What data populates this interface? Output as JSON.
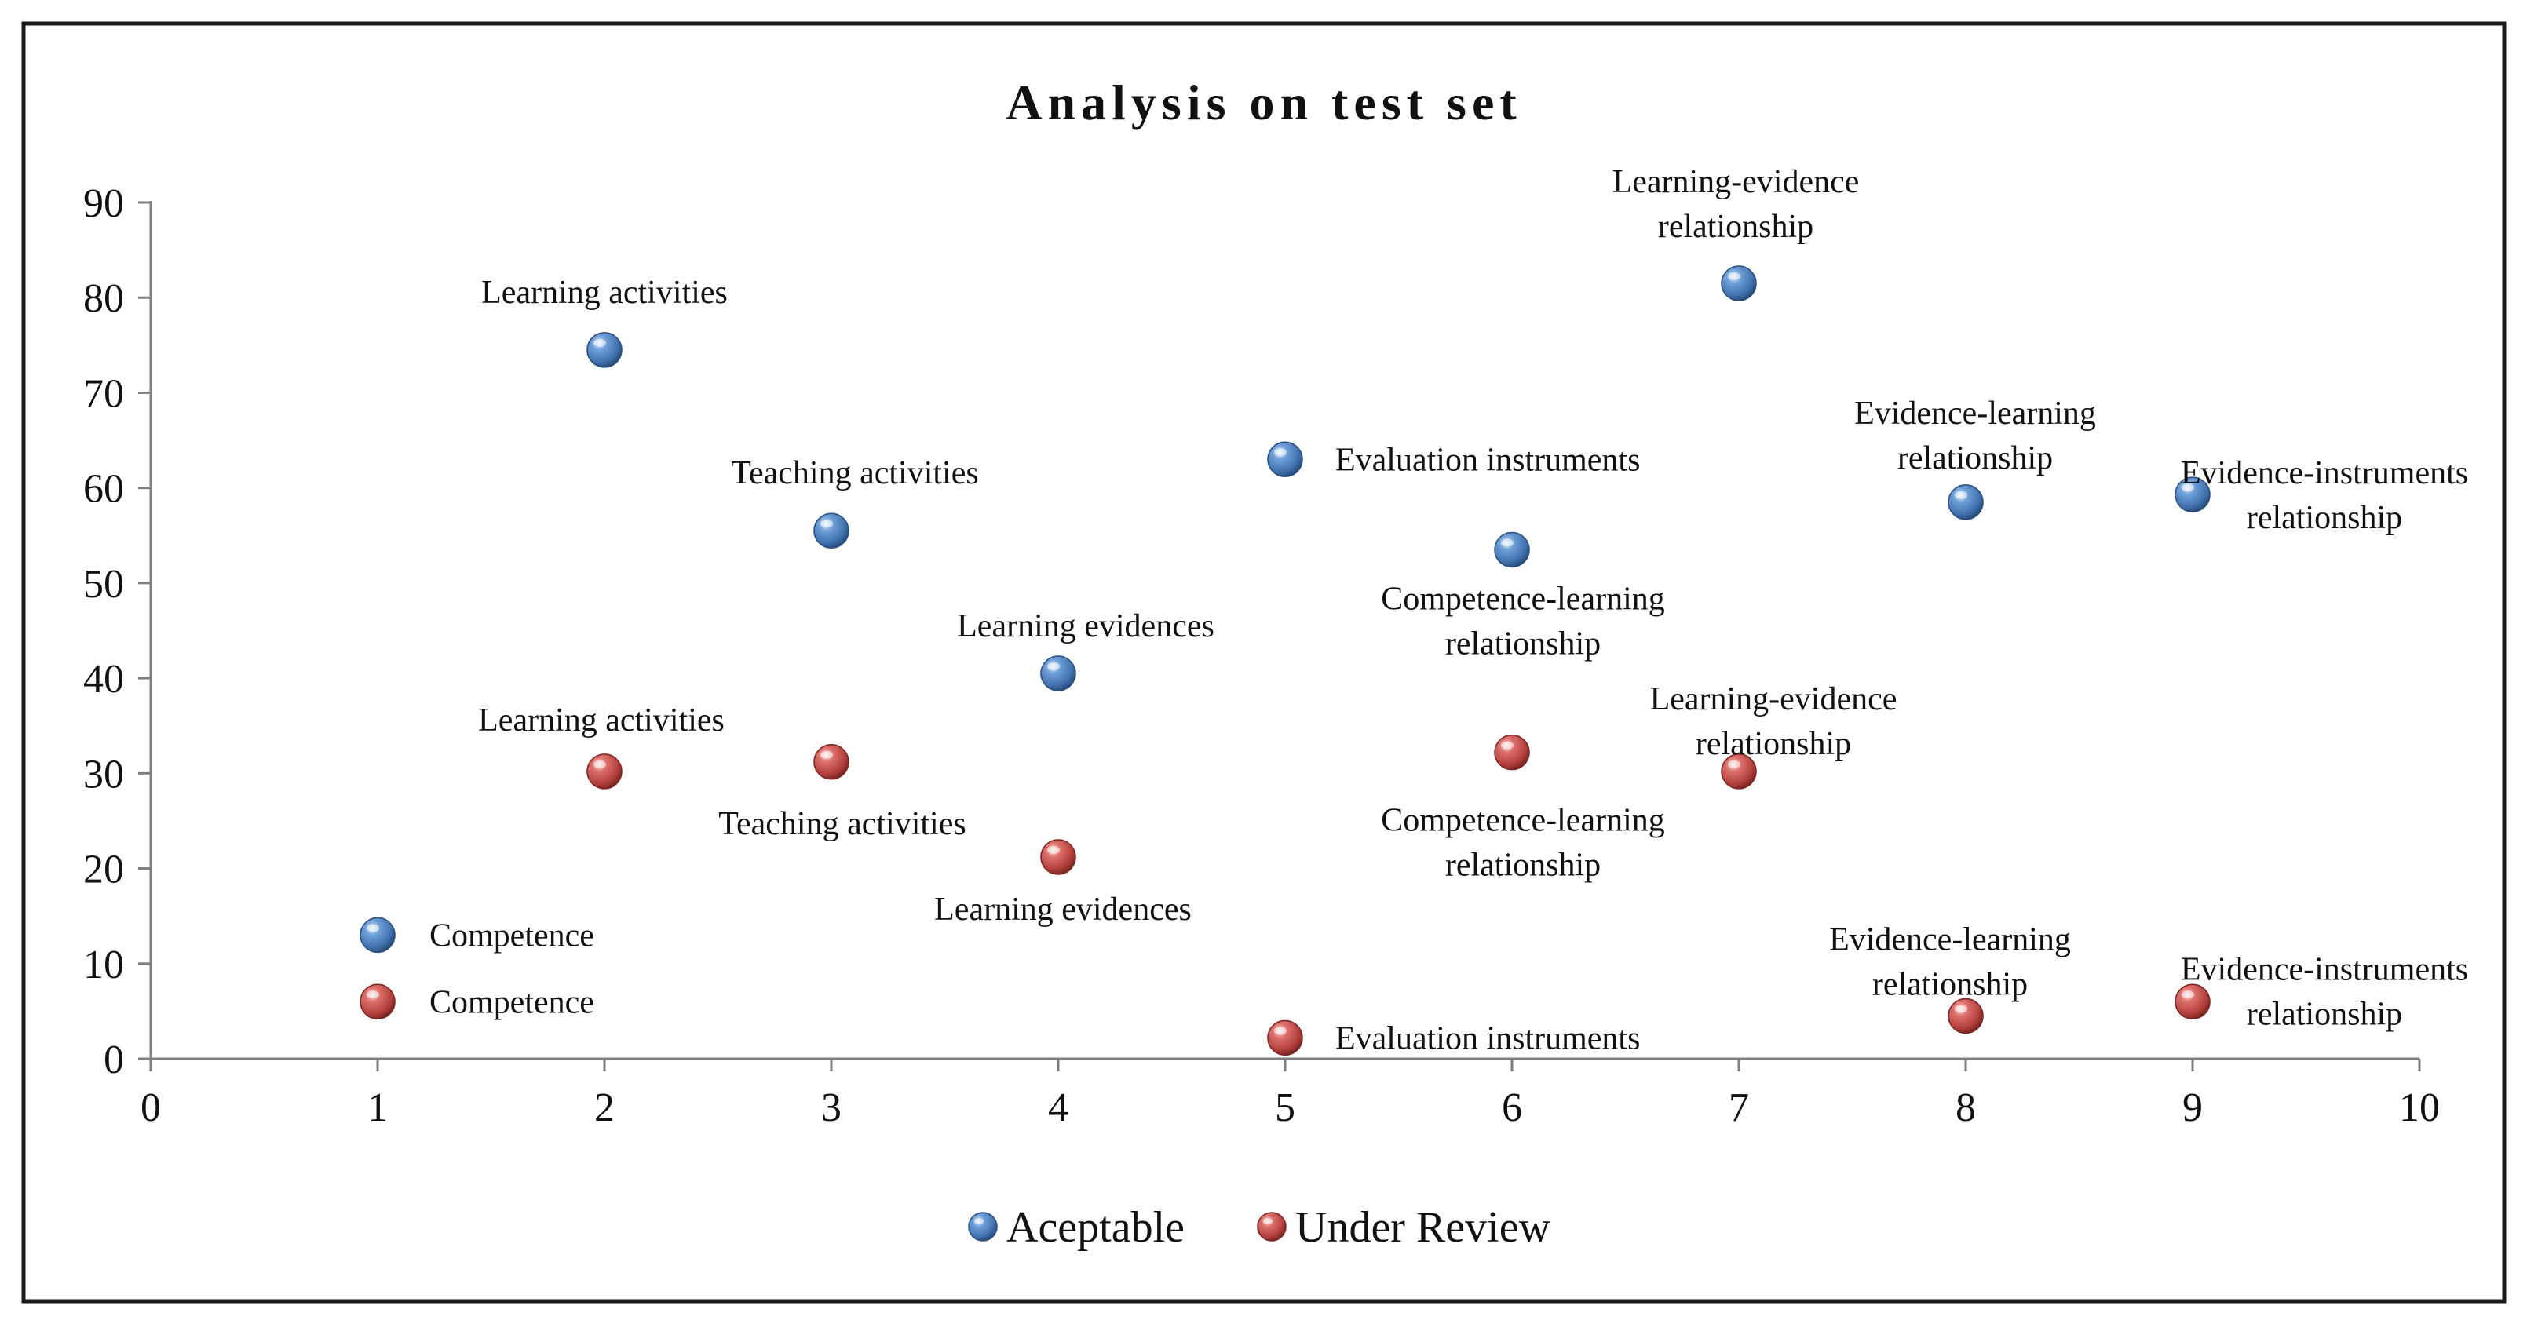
{
  "chart_data": {
    "type": "scatter",
    "title": "Analysis on test set",
    "xlabel": "",
    "ylabel": "",
    "xlim": [
      0,
      10
    ],
    "ylim": [
      0,
      90
    ],
    "x_ticks": [
      "0",
      "1",
      "2",
      "3",
      "4",
      "5",
      "6",
      "7",
      "8",
      "9",
      "10"
    ],
    "y_ticks": [
      "0",
      "10",
      "20",
      "30",
      "40",
      "50",
      "60",
      "70",
      "80",
      "90"
    ],
    "grid": false,
    "legend_position": "bottom",
    "series": [
      {
        "name": "Aceptable",
        "color": "#4a7ebf",
        "points": [
          {
            "x": 1,
            "y": 13,
            "label": [
              "Competence"
            ]
          },
          {
            "x": 2,
            "y": 74.5,
            "label": [
              "Learning activities"
            ]
          },
          {
            "x": 3,
            "y": 55.5,
            "label": [
              "Teaching activities"
            ]
          },
          {
            "x": 4,
            "y": 40.5,
            "label": [
              "Learning evidences"
            ]
          },
          {
            "x": 5,
            "y": 63,
            "label": [
              "Evaluation instruments"
            ]
          },
          {
            "x": 6,
            "y": 53.5,
            "label": [
              "Competence-learning",
              "relationship"
            ]
          },
          {
            "x": 7,
            "y": 81.5,
            "label": [
              "Learning-evidence",
              "relationship"
            ]
          },
          {
            "x": 8,
            "y": 58.5,
            "label": [
              "Evidence-learning",
              "relationship"
            ]
          },
          {
            "x": 9,
            "y": 59.3,
            "label": [
              "Evidence-instruments",
              "relationship"
            ]
          }
        ]
      },
      {
        "name": "Under Review",
        "color": "#c0504d",
        "points": [
          {
            "x": 1,
            "y": 6,
            "label": [
              "Competence"
            ]
          },
          {
            "x": 2,
            "y": 30.2,
            "label": [
              "Learning activities"
            ]
          },
          {
            "x": 3,
            "y": 31.2,
            "label": [
              "Teaching activities"
            ]
          },
          {
            "x": 4,
            "y": 21.2,
            "label": [
              "Learning evidences"
            ]
          },
          {
            "x": 5,
            "y": 2.2,
            "label": [
              "Evaluation instruments"
            ]
          },
          {
            "x": 6,
            "y": 32.2,
            "label": [
              "Competence-learning",
              "relationship"
            ]
          },
          {
            "x": 7,
            "y": 30.2,
            "label": [
              "Learning-evidence",
              "relationship"
            ]
          },
          {
            "x": 8,
            "y": 4.5,
            "label": [
              "Evidence-learning",
              "relationship"
            ]
          },
          {
            "x": 9,
            "y": 6,
            "label": [
              "Evidence-instruments",
              "relationship"
            ]
          }
        ]
      }
    ]
  }
}
